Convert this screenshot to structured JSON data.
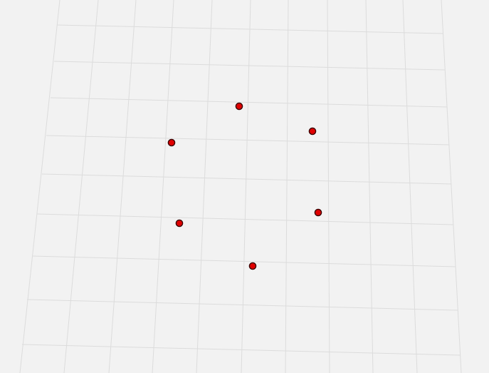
{
  "scene": {
    "background_color": "#f2f2f2",
    "grid_color": "#dcdcdc",
    "marker_fill_color": "#e00000",
    "marker_stroke_color": "#3a0000",
    "marker_count": 6
  }
}
